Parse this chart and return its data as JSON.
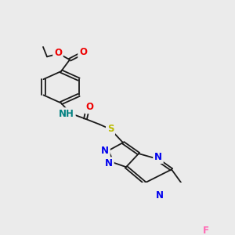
{
  "bg_color": "#ebebeb",
  "bond_color": "#1a1a1a",
  "atom_colors": {
    "N": "#0000ee",
    "O": "#ee0000",
    "S": "#bbbb00",
    "F": "#ff69b4",
    "C": "#1a1a1a",
    "H": "#008080"
  },
  "lw": 1.3,
  "fs": 8.5
}
